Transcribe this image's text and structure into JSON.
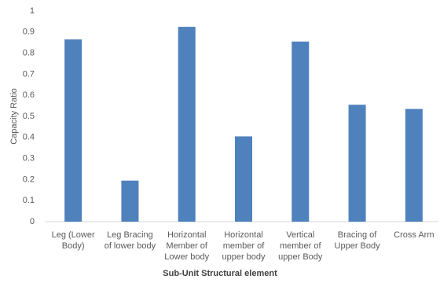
{
  "chart_data": {
    "type": "bar",
    "x_label": "Sub-Unit Structural element",
    "y_label": "Capacity Ratio",
    "categories": [
      "Leg (Lower Body)",
      "Leg Bracing of lower body",
      "Horizontal Member of Lower body",
      "Horizontal member of upper body",
      "Vertical member of upper Body",
      "Bracing of Upper Body",
      "Cross Arm"
    ],
    "values": [
      0.865,
      0.195,
      0.925,
      0.405,
      0.855,
      0.555,
      0.535
    ],
    "color": "#4f81bd",
    "ylim": [
      0,
      1
    ],
    "yticks": [
      0,
      0.1,
      0.2,
      0.3,
      0.4,
      0.5,
      0.6,
      0.7,
      0.8,
      0.9,
      1
    ],
    "grid": false
  }
}
